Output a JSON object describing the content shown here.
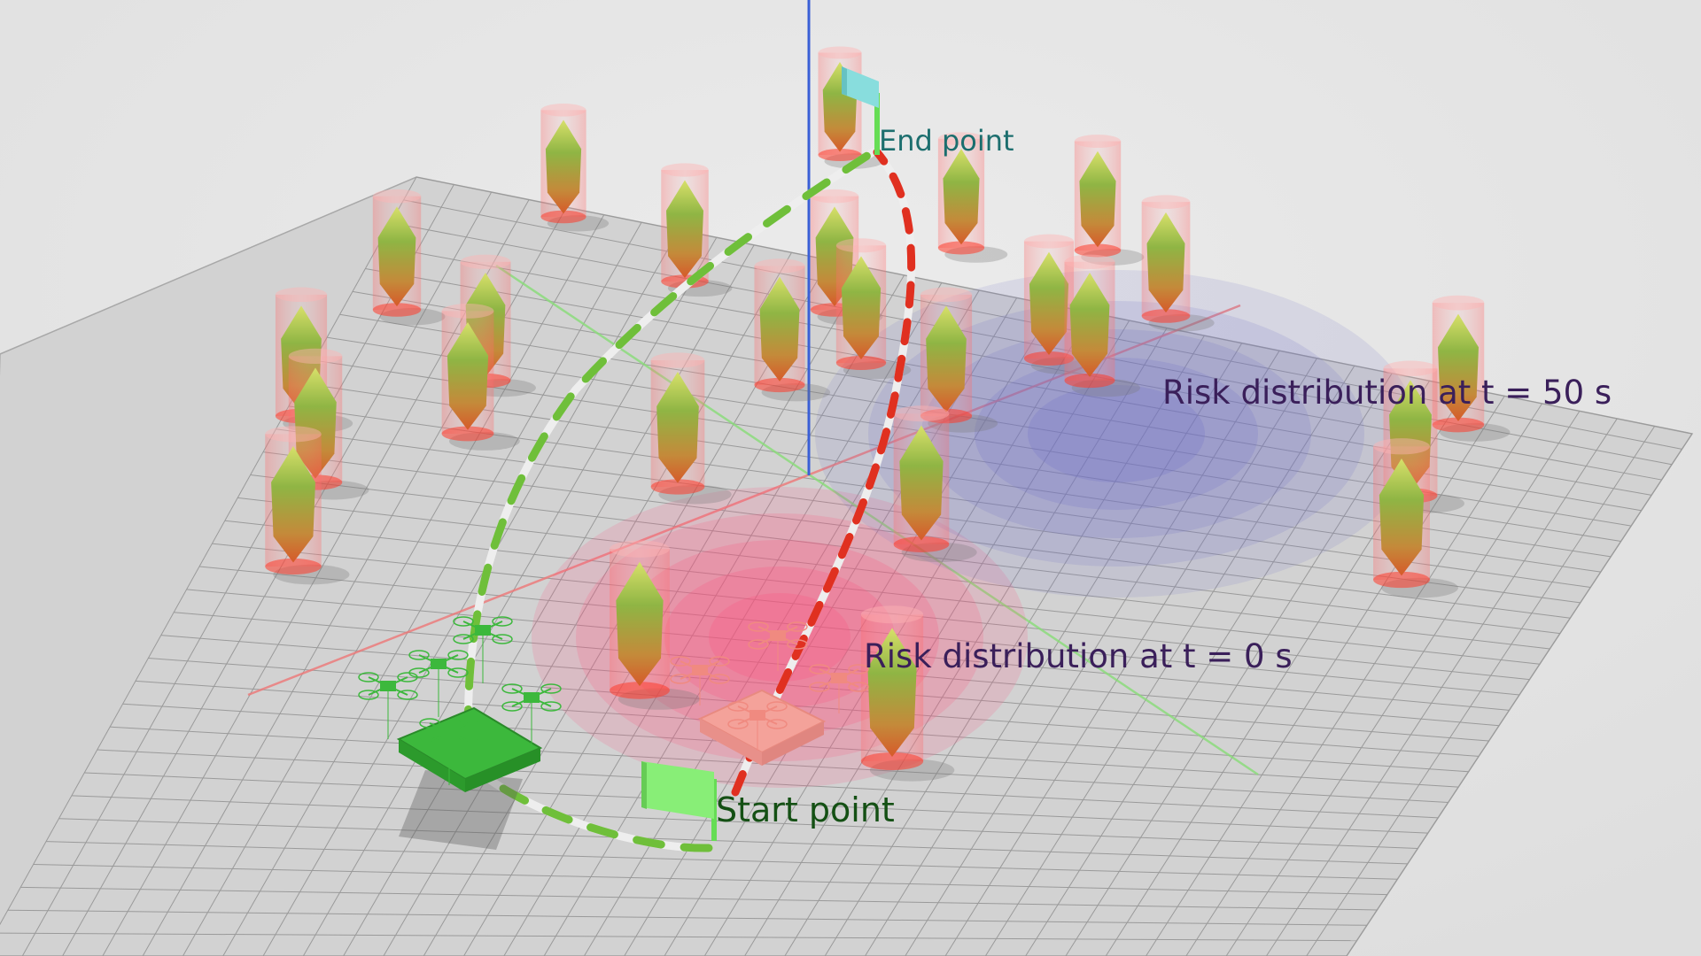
{
  "labels": {
    "end_point": "End point",
    "start_point": "Start point",
    "risk_t50": "Risk distribution at t = 50 s",
    "risk_t0": "Risk distribution at t = 0 s"
  },
  "colors": {
    "background": "#e6e6e6",
    "floor": "#d2d2d2",
    "grid": "#9a9a9a",
    "axis_x": "#ee7777",
    "axis_y": "#88dd77",
    "axis_z": "#3a5fd6",
    "risk_t0": "#ff4d7a",
    "risk_t50": "#6f6fc8",
    "path_green": "#6fbf3a",
    "path_red": "#e03020",
    "path_white": "#eeeeee",
    "drone_green": "#3cb83c",
    "drone_pink": "#f4a29a",
    "start_flag": "#88ee77",
    "end_flag": "#88dddd",
    "label_end": "#1c6e6e",
    "label_start": "#145014",
    "label_risk": "#3a1f5a"
  },
  "icons": {
    "obstacle": "tree-in-cylinder-icon",
    "start_flag": "flag-icon",
    "end_flag": "flag-icon",
    "drone": "quadcopter-icon",
    "platform": "platform-icon"
  }
}
